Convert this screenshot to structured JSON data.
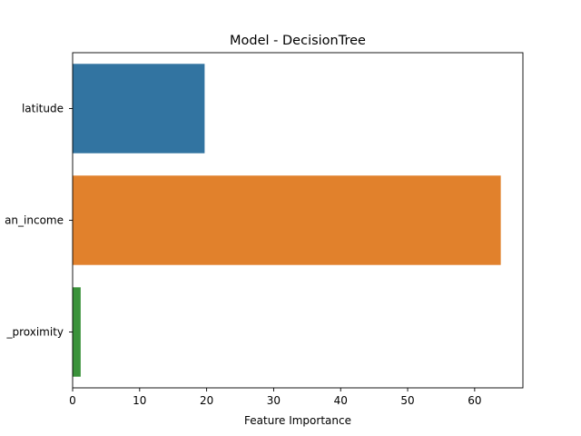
{
  "chart_data": {
    "type": "bar",
    "orientation": "horizontal",
    "title": "Model - DecisionTree",
    "xlabel": "Feature Importance",
    "ylabel": "",
    "categories": [
      "latitude",
      "median_income",
      "ocean_proximity"
    ],
    "visible_category_labels": [
      "latitude",
      "an_income",
      "_proximity"
    ],
    "values": [
      19.7,
      63.9,
      1.2
    ],
    "colors": [
      "#3274a1",
      "#e1812c",
      "#3a923a"
    ],
    "xlim": [
      0,
      67.2
    ],
    "xticks": [
      0,
      10,
      20,
      30,
      40,
      50,
      60
    ],
    "xtick_labels": [
      "0",
      "10",
      "20",
      "30",
      "40",
      "50",
      "60"
    ],
    "grid": false,
    "legend": "none"
  }
}
